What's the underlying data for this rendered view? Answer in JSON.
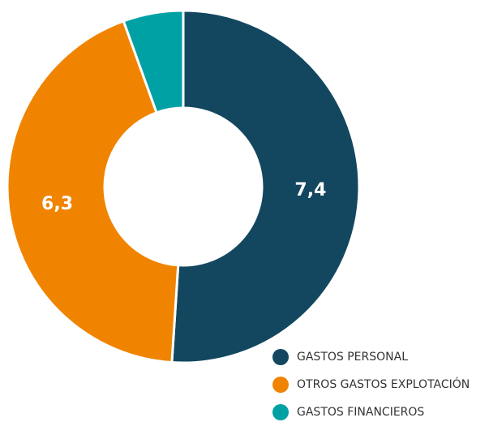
{
  "chart_data": {
    "type": "donut",
    "categories": [
      "GASTOS PERSONAL",
      "OTROS GASTOS EXPLOTACIÓN",
      "GASTOS FINANCIEROS"
    ],
    "values": [
      7.4,
      6.3,
      0.8
    ],
    "value_labels": [
      "7,4",
      "6,3",
      null
    ],
    "colors": [
      "#12475f",
      "#f08400",
      "#00a1a4"
    ],
    "legend": "bottom-right"
  }
}
